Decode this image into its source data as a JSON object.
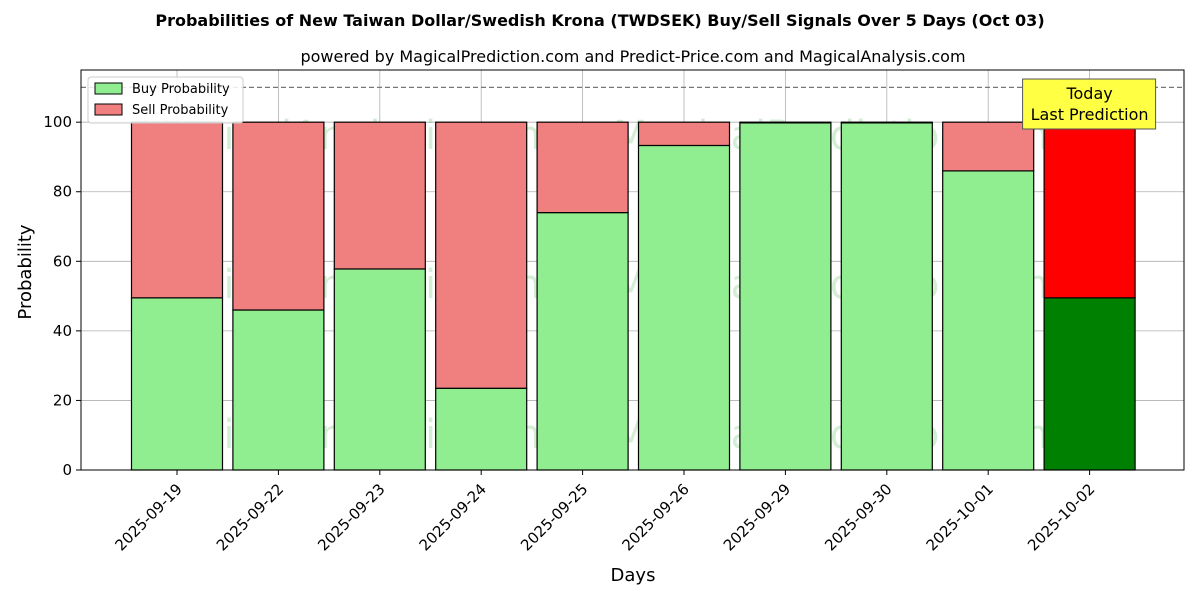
{
  "chart_data": {
    "type": "bar",
    "stacked": true,
    "title": "Probabilities of New Taiwan Dollar/Swedish Krona (TWDSEK) Buy/Sell Signals Over 5 Days (Oct 03)",
    "subtitle": "powered by MagicalPrediction.com and Predict-Price.com and MagicalAnalysis.com",
    "xlabel": "Days",
    "ylabel": "Probability",
    "ylim": [
      0,
      115
    ],
    "yticks": [
      0,
      20,
      40,
      60,
      80,
      100
    ],
    "reference_line": 110,
    "grid": true,
    "legend_position": "top-left",
    "categories": [
      "2025-09-19",
      "2025-09-22",
      "2025-09-23",
      "2025-09-24",
      "2025-09-25",
      "2025-09-26",
      "2025-09-29",
      "2025-09-30",
      "2025-10-01",
      "2025-10-02"
    ],
    "series": [
      {
        "name": "Buy Probability",
        "color": "#90ee90",
        "highlight_color": "#008000",
        "values": [
          49.5,
          46.0,
          57.8,
          23.5,
          74.0,
          93.3,
          99.8,
          99.8,
          86.0,
          49.5
        ]
      },
      {
        "name": "Sell Probability",
        "color": "#f08080",
        "highlight_color": "#ff0000",
        "values": [
          50.5,
          54.0,
          42.2,
          76.5,
          26.0,
          6.7,
          0.2,
          0.2,
          14.0,
          50.5
        ]
      }
    ],
    "highlight_index": 9,
    "annotation": {
      "line1": "Today",
      "line2": "Last Prediction",
      "color": "#ffff44"
    },
    "watermarks": [
      "MagicalAnalysis.com",
      "MagicalPrediction.com",
      "MagicalAnalysis.com",
      "MagicalPrediction.com",
      "MagicalAnalysis.com",
      "MagicalPrediction.com"
    ]
  }
}
